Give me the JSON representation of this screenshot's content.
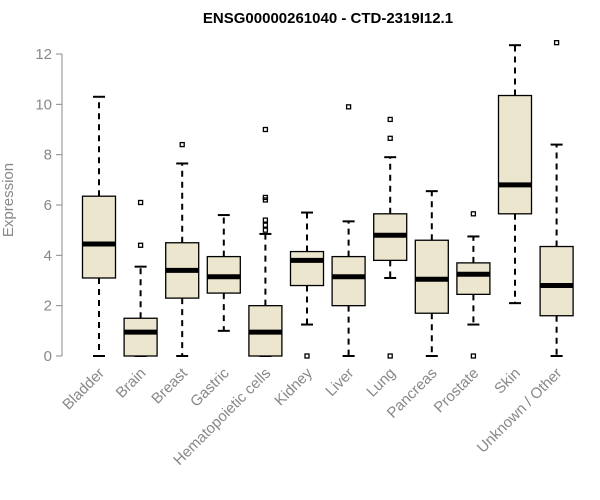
{
  "chart_data": {
    "type": "box",
    "title": "ENSG00000261040 - CTD-2319I12.1",
    "xlabel": "",
    "ylabel": "Expression",
    "ylim": [
      0,
      12.5
    ],
    "yticks": [
      0,
      2,
      4,
      6,
      8,
      10,
      12
    ],
    "box_fill": "#ede6cf",
    "categories": [
      "Bladder",
      "Brain",
      "Breast",
      "Gastric",
      "Hematopoietic cells",
      "Kidney",
      "Liver",
      "Lung",
      "Pancreas",
      "Prostate",
      "Skin",
      "Unknown / Other"
    ],
    "boxes": [
      {
        "min": 0.0,
        "q1": 3.1,
        "median": 4.45,
        "q3": 6.35,
        "max": 10.3,
        "outliers": []
      },
      {
        "min": 0.0,
        "q1": 0.0,
        "median": 0.95,
        "q3": 1.5,
        "max": 3.55,
        "outliers": [
          4.4,
          6.1
        ]
      },
      {
        "min": 0.0,
        "q1": 2.3,
        "median": 3.4,
        "q3": 4.5,
        "max": 7.65,
        "outliers": [
          8.4
        ]
      },
      {
        "min": 1.0,
        "q1": 2.5,
        "median": 3.15,
        "q3": 3.95,
        "max": 5.6,
        "outliers": []
      },
      {
        "min": 0.0,
        "q1": 0.0,
        "median": 0.95,
        "q3": 2.0,
        "max": 4.85,
        "outliers": [
          5.0,
          5.2,
          5.4,
          6.2,
          6.3,
          9.0
        ]
      },
      {
        "min": 1.25,
        "q1": 2.8,
        "median": 3.8,
        "q3": 4.15,
        "max": 5.7,
        "outliers": [
          0.0
        ]
      },
      {
        "min": 0.0,
        "q1": 2.0,
        "median": 3.15,
        "q3": 3.95,
        "max": 5.35,
        "outliers": [
          9.9
        ]
      },
      {
        "min": 3.1,
        "q1": 3.8,
        "median": 4.8,
        "q3": 5.65,
        "max": 7.9,
        "outliers": [
          0.0,
          8.65,
          9.4
        ]
      },
      {
        "min": 0.0,
        "q1": 1.7,
        "median": 3.05,
        "q3": 4.6,
        "max": 6.55,
        "outliers": []
      },
      {
        "min": 1.25,
        "q1": 2.45,
        "median": 3.25,
        "q3": 3.7,
        "max": 4.75,
        "outliers": [
          0.0,
          5.65
        ]
      },
      {
        "min": 2.1,
        "q1": 5.65,
        "median": 6.8,
        "q3": 10.35,
        "max": 12.35,
        "outliers": []
      },
      {
        "min": 0.0,
        "q1": 1.6,
        "median": 2.8,
        "q3": 4.35,
        "max": 8.4,
        "outliers": [
          12.45
        ]
      }
    ]
  }
}
